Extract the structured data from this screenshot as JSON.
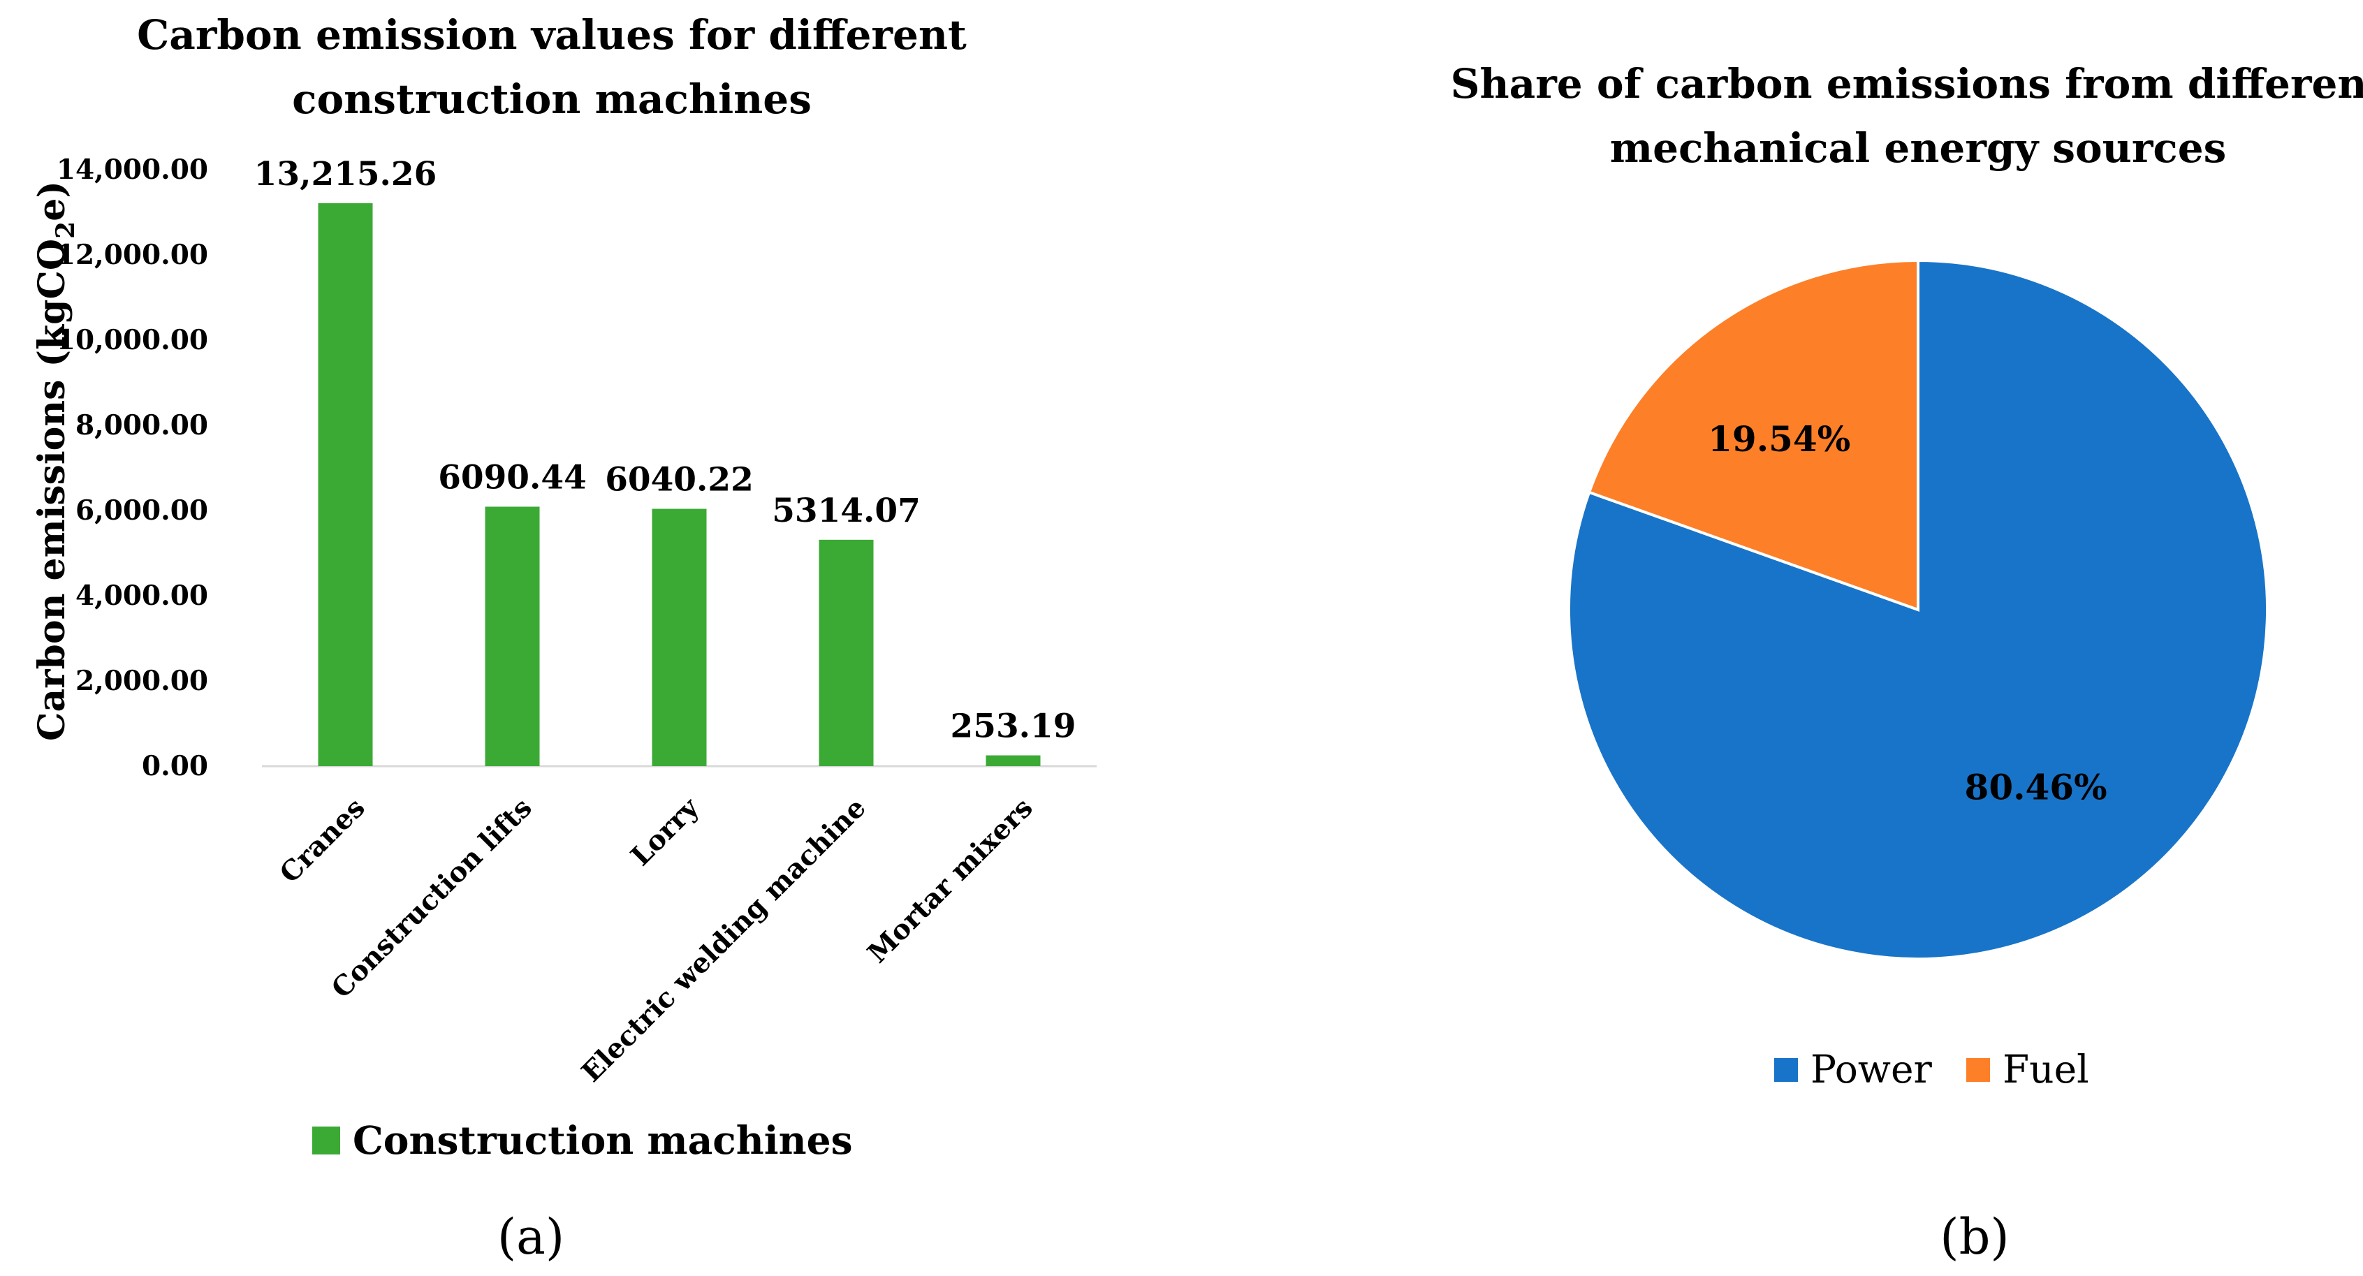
{
  "chart_data": [
    {
      "type": "bar",
      "panel_label": "(a)",
      "title_lines": [
        "Carbon emission values for different",
        "construction machines"
      ],
      "ylabel_main": "Carbon emissions  (kgCO",
      "ylabel_sub": "2",
      "ylabel_end": "e)",
      "categories": [
        "Cranes",
        "Construction lifts",
        "Lorry",
        "Electric welding machine",
        "Mortar mixers"
      ],
      "series": [
        {
          "name": "Construction machines",
          "color": "#3aaa35",
          "values": [
            13215.26,
            6090.44,
            6040.22,
            5314.07,
            253.19
          ],
          "labels": [
            "13,215.26",
            "6090.44",
            "6040.22",
            "5314.07",
            "253.19"
          ]
        }
      ],
      "ylim": [
        0,
        14000
      ],
      "yticks": [
        0,
        2000,
        4000,
        6000,
        8000,
        10000,
        12000,
        14000
      ],
      "ytick_labels": [
        "0.00",
        "2,000.00",
        "4,000.00",
        "6,000.00",
        "8,000.00",
        "10,000.00",
        "12,000.00",
        "14,000.00"
      ],
      "grid": false,
      "legend_position": "bottom"
    },
    {
      "type": "pie",
      "panel_label": "(b)",
      "title_lines": [
        "Share of carbon emissions from different",
        "mechanical energy sources"
      ],
      "slices": [
        {
          "name": "Power",
          "value": 80.46,
          "label": "80.46%",
          "color": "#1874c8"
        },
        {
          "name": "Fuel",
          "value": 19.54,
          "label": "19.54%",
          "color": "#fd7f28"
        }
      ],
      "legend_position": "bottom"
    }
  ]
}
